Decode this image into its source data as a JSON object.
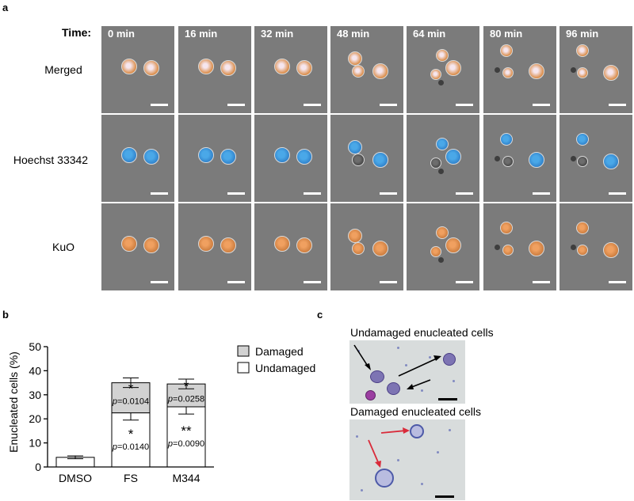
{
  "panels": {
    "a": "a",
    "b": "b",
    "c": "c"
  },
  "panel_a": {
    "time_label": "Time:",
    "timepoints": [
      "0 min",
      "16 min",
      "32 min",
      "48 min",
      "64 min",
      "80 min",
      "96 min"
    ],
    "rows": [
      "Merged",
      "Hoechst 33342",
      "KuO"
    ],
    "colors": {
      "tile_bg": "#7b7b7b",
      "kuo_orange": "#d98a45",
      "hoechst_blue": "#2f8fd6",
      "merged_pink": "#eed8e8"
    }
  },
  "chart_data": {
    "type": "bar",
    "stacked": true,
    "categories": [
      "DMSO",
      "FS",
      "M344"
    ],
    "series": [
      {
        "name": "Undamaged",
        "color": "#ffffff",
        "values": [
          4,
          22.5,
          25
        ],
        "errors": [
          0.6,
          3,
          3
        ]
      },
      {
        "name": "Damaged",
        "color": "#d2d2d2",
        "values": [
          0,
          12.5,
          9.5
        ],
        "errors": [
          0,
          2,
          2
        ]
      }
    ],
    "annotations": [
      {
        "category": "FS",
        "segment": "Damaged",
        "stars": "*",
        "p_text": "p=0.0104"
      },
      {
        "category": "FS",
        "segment": "Undamaged",
        "stars": "*",
        "p_text": "p=0.0140"
      },
      {
        "category": "M344",
        "segment": "Damaged",
        "stars": "*",
        "p_text": "p=0.0258"
      },
      {
        "category": "M344",
        "segment": "Undamaged",
        "stars": "**",
        "p_text": "p=0.0090"
      }
    ],
    "ylabel": "Enucleated cells (%)",
    "ylim": [
      0,
      50
    ],
    "yticks": [
      0,
      10,
      20,
      30,
      40,
      50
    ],
    "legend": [
      "Damaged",
      "Undamaged"
    ],
    "legend_position": "top-right"
  },
  "panel_c": {
    "top_title": "Undamaged enucleated cells",
    "bottom_title": "Damaged enucleated cells",
    "arrow_colors": {
      "undamaged": "#000000",
      "damaged": "#d92b3a"
    }
  }
}
